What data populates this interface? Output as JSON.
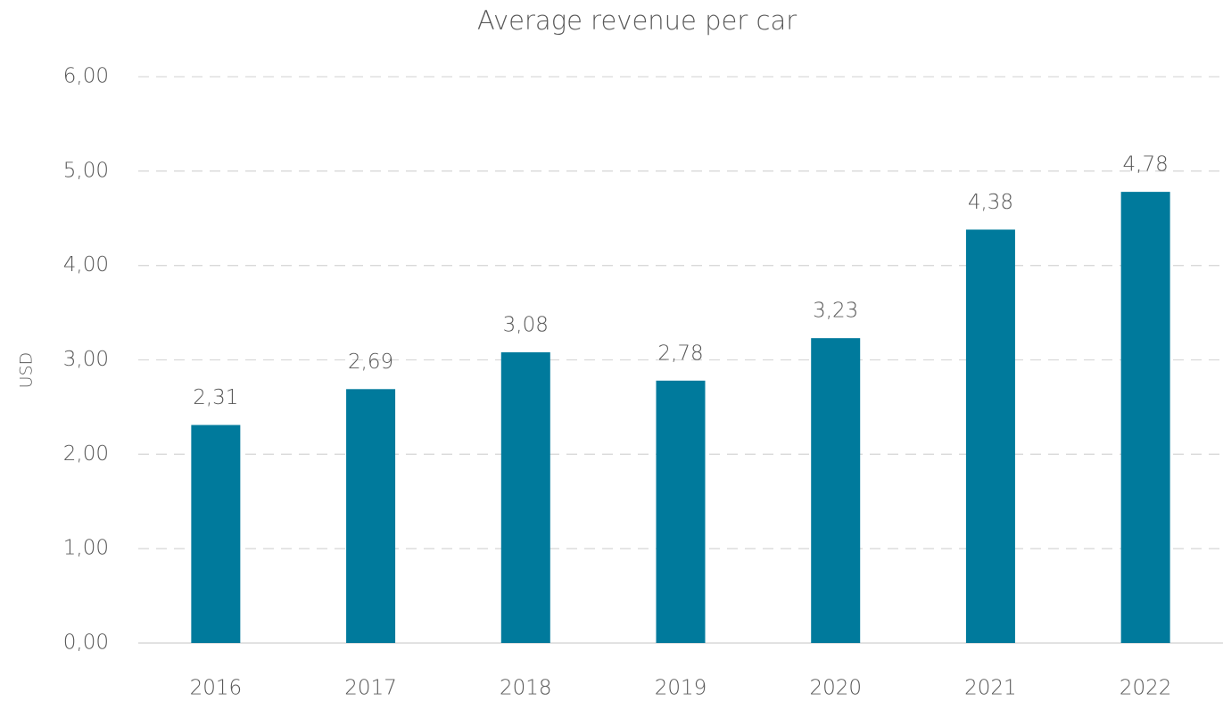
{
  "chart_data": {
    "type": "bar",
    "title": "Average revenue per car",
    "y_label": "USD",
    "categories": [
      "2016",
      "2017",
      "2018",
      "2019",
      "2020",
      "2021",
      "2022"
    ],
    "values": [
      2.31,
      2.69,
      3.08,
      2.78,
      3.23,
      4.38,
      4.78
    ],
    "value_labels": [
      "2,31",
      "2,69",
      "3,08",
      "2,78",
      "3,23",
      "4,38",
      "4,78"
    ],
    "color": "#007a9c",
    "ylim": [
      0,
      6
    ],
    "yticks": [
      {
        "value": 0,
        "label": "0,00"
      },
      {
        "value": 1,
        "label": "1,00"
      },
      {
        "value": 2,
        "label": "2,00"
      },
      {
        "value": 3,
        "label": "3,00"
      },
      {
        "value": 4,
        "label": "4,00"
      },
      {
        "value": 5,
        "label": "5,00"
      },
      {
        "value": 6,
        "label": "6,00"
      }
    ],
    "grid": true
  }
}
